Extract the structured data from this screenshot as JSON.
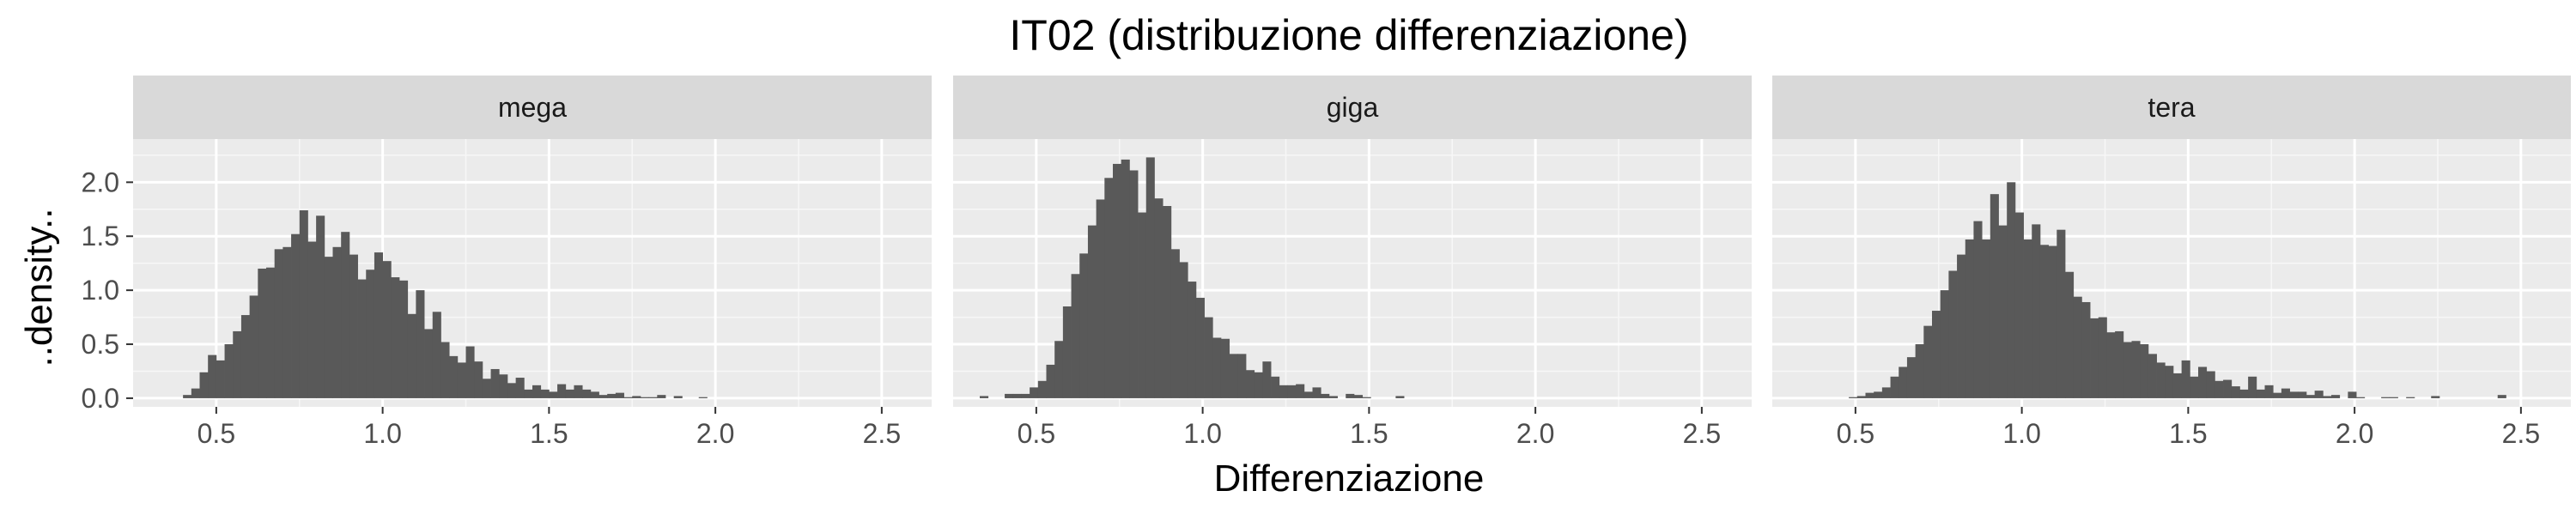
{
  "chart_data": {
    "type": "histogram",
    "title": "IT02 (distribuzione differenziazione)",
    "xlabel": "Differenziazione",
    "ylabel": "..density..",
    "xlim": [
      0.25,
      2.65
    ],
    "ylim": [
      -0.08,
      2.4
    ],
    "x_ticks": [
      0.5,
      1.0,
      1.5,
      2.0,
      2.5
    ],
    "x_tick_labels": [
      "0.5",
      "1.0",
      "1.5",
      "2.0",
      "2.5"
    ],
    "y_ticks": [
      0.0,
      0.5,
      1.0,
      1.5,
      2.0
    ],
    "y_tick_labels": [
      "0.0",
      "0.5",
      "1.0",
      "1.5",
      "2.0"
    ],
    "grid": true,
    "bar_color": "#595959",
    "panel_background": "#ebebeb",
    "strip_background": "#d9d9d9",
    "panels": [
      {
        "name": "mega",
        "bin_start": 0.4,
        "bin_width": 0.025,
        "values": [
          0.03,
          0.09,
          0.24,
          0.4,
          0.35,
          0.5,
          0.62,
          0.77,
          0.95,
          1.2,
          1.21,
          1.38,
          1.4,
          1.52,
          1.74,
          1.45,
          1.69,
          1.31,
          1.4,
          1.54,
          1.33,
          1.1,
          1.19,
          1.35,
          1.27,
          1.12,
          1.09,
          0.78,
          1.0,
          0.64,
          0.8,
          0.52,
          0.39,
          0.33,
          0.48,
          0.34,
          0.18,
          0.27,
          0.22,
          0.14,
          0.19,
          0.08,
          0.12,
          0.08,
          0.06,
          0.13,
          0.08,
          0.12,
          0.08,
          0.06,
          0.03,
          0.04,
          0.05,
          0.01,
          0.02,
          0.01,
          0.01,
          0.03,
          0.0,
          0.02,
          0.0,
          0.0,
          0.01
        ]
      },
      {
        "name": "giga",
        "bin_start": 0.33,
        "bin_width": 0.025,
        "values": [
          0.02,
          0.0,
          0.0,
          0.04,
          0.04,
          0.04,
          0.1,
          0.16,
          0.31,
          0.53,
          0.85,
          1.15,
          1.34,
          1.6,
          1.84,
          2.04,
          2.17,
          2.21,
          2.11,
          1.72,
          2.23,
          1.85,
          1.78,
          1.38,
          1.26,
          1.08,
          0.93,
          0.75,
          0.56,
          0.55,
          0.41,
          0.41,
          0.26,
          0.24,
          0.34,
          0.2,
          0.12,
          0.12,
          0.13,
          0.06,
          0.1,
          0.04,
          0.02,
          0.0,
          0.04,
          0.03,
          0.01,
          0.0,
          0.0,
          0.0,
          0.02,
          0.0
        ]
      },
      {
        "name": "tera",
        "bin_start": 0.48,
        "bin_width": 0.025,
        "values": [
          0.01,
          0.02,
          0.05,
          0.06,
          0.1,
          0.2,
          0.29,
          0.38,
          0.5,
          0.67,
          0.81,
          1.0,
          1.18,
          1.33,
          1.47,
          1.64,
          1.47,
          1.89,
          1.6,
          2.0,
          1.72,
          1.47,
          1.61,
          1.42,
          1.41,
          1.56,
          1.17,
          0.94,
          0.89,
          0.74,
          0.75,
          0.61,
          0.62,
          0.52,
          0.53,
          0.5,
          0.41,
          0.33,
          0.3,
          0.23,
          0.35,
          0.2,
          0.29,
          0.25,
          0.16,
          0.17,
          0.11,
          0.08,
          0.2,
          0.08,
          0.12,
          0.05,
          0.09,
          0.06,
          0.06,
          0.03,
          0.07,
          0.02,
          0.03,
          0.0,
          0.06,
          0.01,
          0.0,
          0.0,
          0.01,
          0.01,
          0.0,
          0.01,
          0.0,
          0.0,
          0.02,
          0.0,
          0.0,
          0.0,
          0.0,
          0.0,
          0.0,
          0.0,
          0.03
        ]
      }
    ]
  }
}
